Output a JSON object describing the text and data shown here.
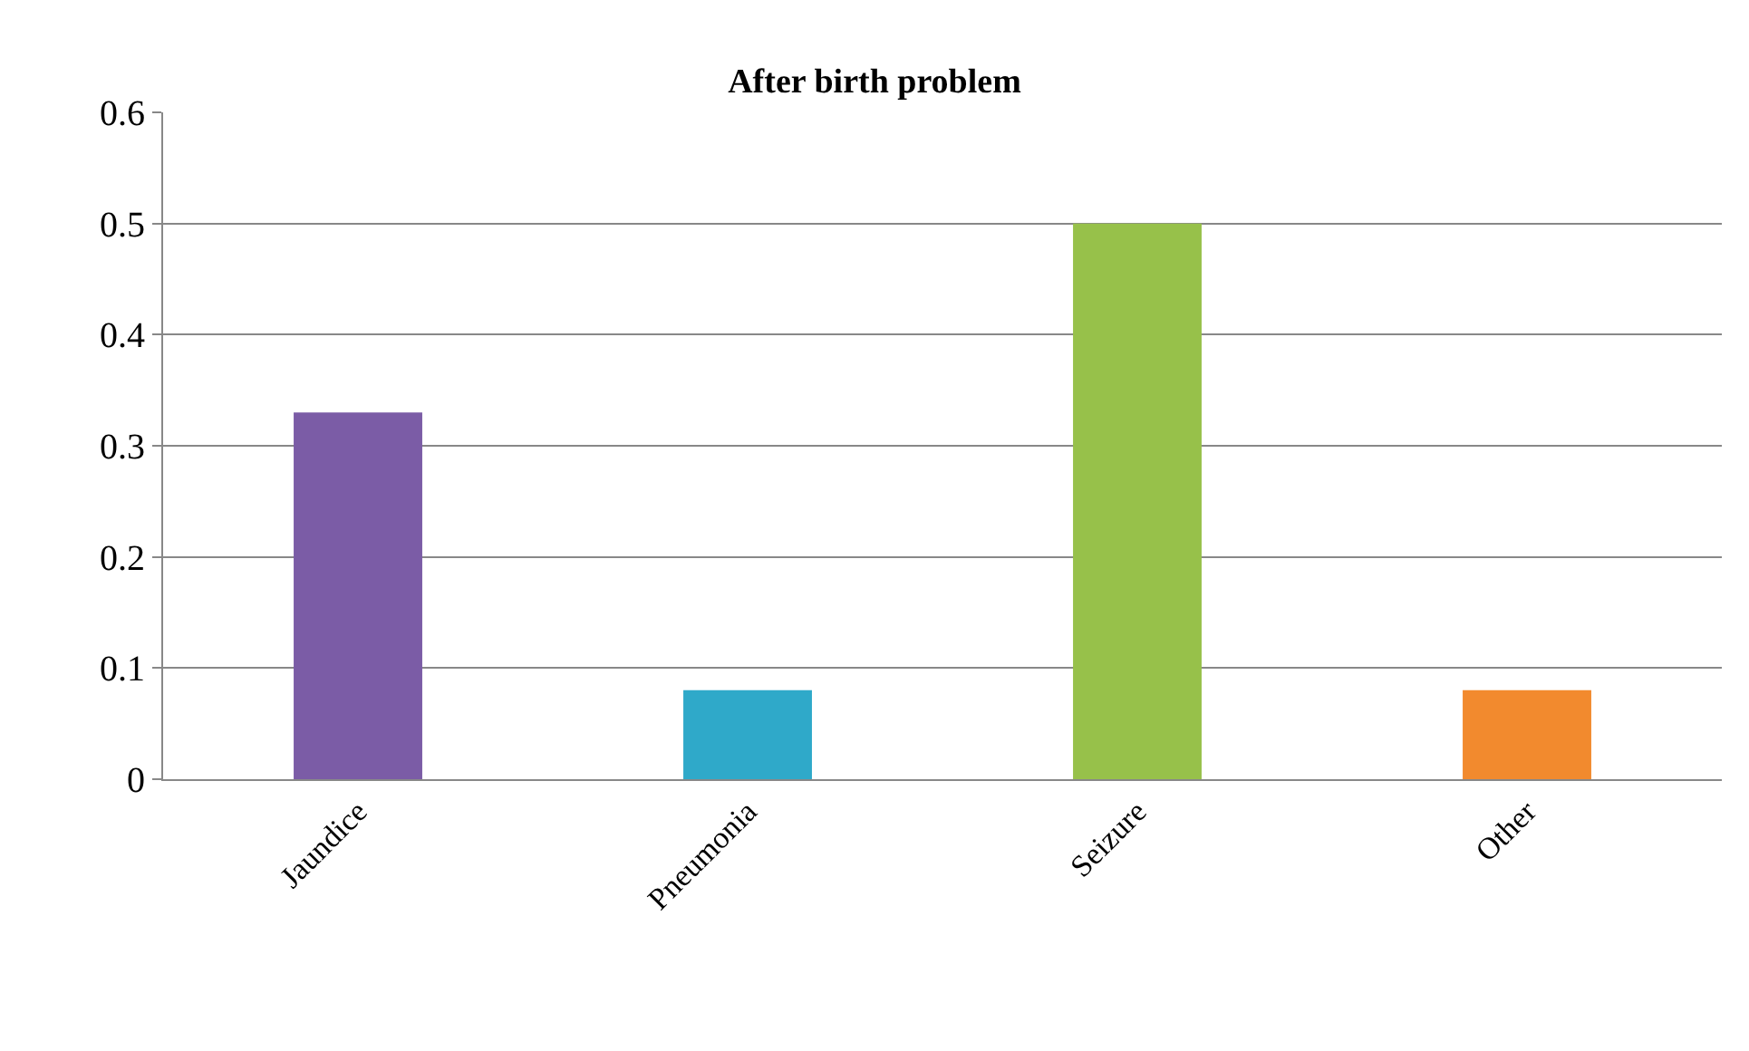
{
  "chart_data": {
    "type": "bar",
    "title": "After birth problem",
    "categories": [
      "Jaundice",
      "Pneumonia",
      "Seizure",
      "Other"
    ],
    "values": [
      0.33,
      0.08,
      0.5,
      0.08
    ],
    "colors": [
      "#7b5ca6",
      "#2fa9c9",
      "#97c14a",
      "#f28a2e"
    ],
    "ylim": [
      0,
      0.6
    ],
    "yticks": [
      0,
      0.1,
      0.2,
      0.3,
      0.4,
      0.5,
      0.6
    ],
    "grid": "y"
  }
}
